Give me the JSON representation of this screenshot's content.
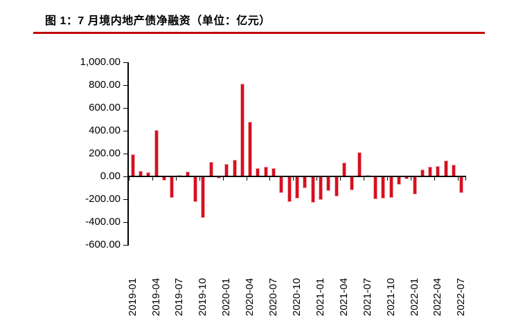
{
  "figure": {
    "title": "图 1：7 月境内地产债净融资（单位：亿元）"
  },
  "colors": {
    "bar": "#d6101f",
    "bar_edge": "#f0aab0",
    "title_underline": "#c00000",
    "axis": "#000000"
  },
  "chart_data": {
    "type": "bar",
    "title": "图 1：7 月境内地产债净融资（单位：亿元）",
    "unit": "亿元",
    "categories": [
      "2019-01",
      "2019-02",
      "2019-03",
      "2019-04",
      "2019-05",
      "2019-06",
      "2019-07",
      "2019-08",
      "2019-09",
      "2019-10",
      "2019-11",
      "2019-12",
      "2020-01",
      "2020-02",
      "2020-03",
      "2020-04",
      "2020-05",
      "2020-06",
      "2020-07",
      "2020-08",
      "2020-09",
      "2020-10",
      "2020-11",
      "2020-12",
      "2021-01",
      "2021-02",
      "2021-03",
      "2021-04",
      "2021-05",
      "2021-06",
      "2021-07",
      "2021-08",
      "2021-09",
      "2021-10",
      "2021-11",
      "2021-12",
      "2022-01",
      "2022-02",
      "2022-03",
      "2022-04",
      "2022-05",
      "2022-06",
      "2022-07"
    ],
    "values": [
      195,
      50,
      35,
      405,
      -35,
      -185,
      15,
      45,
      -225,
      -365,
      125,
      -20,
      110,
      145,
      810,
      480,
      75,
      85,
      70,
      -145,
      -225,
      -195,
      -105,
      -230,
      -205,
      -130,
      -175,
      120,
      -120,
      215,
      10,
      -200,
      -195,
      -185,
      -70,
      -25,
      -155,
      58,
      87,
      92,
      137,
      106,
      -148
    ],
    "ylim": [
      -600,
      1000
    ],
    "ytick_step": 200,
    "ytick_labels": [
      "1,000.00",
      "800.00",
      "600.00",
      "400.00",
      "200.00",
      "0.00",
      "-200.00",
      "-400.00",
      "-600.00"
    ],
    "xtick_label_interval": 3,
    "xtick_labels_visible": [
      "2019-01",
      "2019-04",
      "2019-07",
      "2019-10",
      "2020-01",
      "2020-04",
      "2020-07",
      "2020-10",
      "2021-01",
      "2021-04",
      "2021-07",
      "2021-10",
      "2022-01",
      "2022-04",
      "2022-07"
    ],
    "grid": false,
    "legend": false
  }
}
